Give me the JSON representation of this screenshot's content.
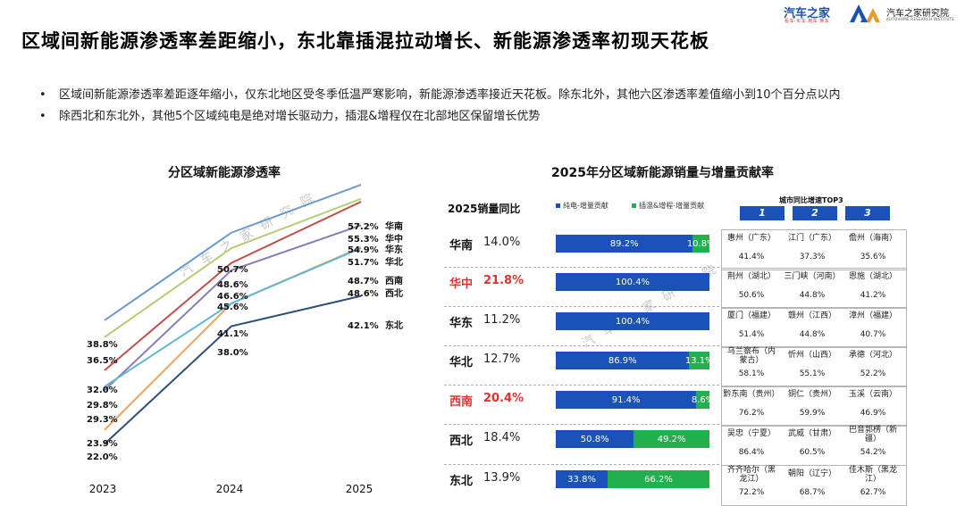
{
  "page": {
    "title": "区域间新能源渗透率差距缩小，东北靠插混拉动增长、新能源渗透率初现天花板",
    "logo_text": "汽车之家",
    "logo_sub": "看车·买车·用车·换车",
    "institute": "汽车之家研究院",
    "institute_en": "AUTOHOME RESEARCH INSTITUTE",
    "watermark": "汽车之家研究院",
    "bullets": [
      "区域间新能源渗透率差距逐年缩小，仅东北地区受冬季低温严寒影响，新能源渗透率接近天花板。除东北外，其他六区渗透率差值缩小到10个百分点以内",
      "除西北和东北外，其他5个区域纯电是绝对增长驱动力，插混&增程仅在北部地区保留增长优势"
    ]
  },
  "line_chart": {
    "title": "分区域新能源渗透率"
  },
  "bar_chart": {
    "title": "2025年分区域新能源销量与增量贡献率",
    "header_yoy": "2025销量同比",
    "legend_bev": "纯电-增量贡献",
    "legend_phev": "插混&增程-增量贡献",
    "city_title": "城市同比增速TOP3",
    "ranks": [
      "1",
      "2",
      "3"
    ]
  },
  "colors": {
    "bev": "#1a52b8",
    "phev": "#22b04e",
    "highlight": "#e0322f"
  },
  "chart_data": [
    {
      "type": "line",
      "title": "分区域新能源渗透率",
      "x": [
        "2023",
        "2024",
        "2025"
      ],
      "unit": "%",
      "ylim": [
        20,
        60
      ],
      "series": [
        {
          "name": "华南",
          "color": "#6b9bd1",
          "values": [
            38.8,
            50.7,
            57.2
          ]
        },
        {
          "name": "华中",
          "color": "#b4cf73",
          "values": [
            36.5,
            48.6,
            55.3
          ]
        },
        {
          "name": "华东",
          "color": "#c0504d",
          "values": [
            32.0,
            46.6,
            54.9
          ]
        },
        {
          "name": "华北",
          "color": "#8c7cb8",
          "values": [
            29.3,
            45.6,
            51.7
          ]
        },
        {
          "name": "西南",
          "color": "#f2a15a",
          "values": [
            23.9,
            41.1,
            48.7
          ]
        },
        {
          "name": "西北",
          "color": "#5fb7d4",
          "values": [
            29.8,
            41.1,
            48.6
          ]
        },
        {
          "name": "东北",
          "color": "#2f4f7a",
          "values": [
            22.0,
            38.0,
            42.1
          ]
        }
      ],
      "data_labels": {
        "2023": [
          "38.8%",
          "36.5%",
          "32.0%",
          "29.8%",
          "29.3%",
          "23.9%",
          "22.0%"
        ],
        "2024": [
          "50.7%",
          "48.6%",
          "46.6%",
          "45.6%",
          "41.1%",
          "38.0%"
        ],
        "2025": [
          {
            "value": "57.2%",
            "region": "华南"
          },
          {
            "value": "55.3%",
            "region": "华中"
          },
          {
            "value": "54.9%",
            "region": "华东"
          },
          {
            "value": "51.7%",
            "region": "华北"
          },
          {
            "value": "48.7%",
            "region": "西南"
          },
          {
            "value": "48.6%",
            "region": "西北"
          },
          {
            "value": "42.1%",
            "region": "东北"
          }
        ]
      }
    },
    {
      "type": "bar",
      "title": "2025年分区域新能源销量与增量贡献率",
      "stacked": true,
      "series_names": [
        "纯电-增量贡献",
        "插混&增程-增量贡献"
      ],
      "rows": [
        {
          "region": "华南",
          "yoy": "14.0%",
          "highlight": false,
          "bev": 89.2,
          "phev": 10.8,
          "bev_label": "89.2%",
          "phev_label": "10.8%",
          "cities": [
            {
              "name": "惠州（广东）",
              "value": "41.4%"
            },
            {
              "name": "江门（广东）",
              "value": "37.3%"
            },
            {
              "name": "儋州（海南）",
              "value": "35.6%"
            }
          ]
        },
        {
          "region": "华中",
          "yoy": "21.8%",
          "highlight": true,
          "bev": 100.4,
          "phev": 0,
          "bev_label": "100.4%",
          "phev_label": "",
          "cities": [
            {
              "name": "荆州（湖北）",
              "value": "50.6%"
            },
            {
              "name": "三门峡（河南）",
              "value": "44.8%"
            },
            {
              "name": "恩施（湖北）",
              "value": "41.2%"
            }
          ]
        },
        {
          "region": "华东",
          "yoy": "11.2%",
          "highlight": false,
          "bev": 100.4,
          "phev": 0,
          "bev_label": "100.4%",
          "phev_label": "",
          "cities": [
            {
              "name": "厦门（福建）",
              "value": "51.4%"
            },
            {
              "name": "赣州（江西）",
              "value": "44.8%"
            },
            {
              "name": "漳州（福建）",
              "value": "40.7%"
            }
          ]
        },
        {
          "region": "华北",
          "yoy": "12.7%",
          "highlight": false,
          "bev": 86.9,
          "phev": 13.1,
          "bev_label": "86.9%",
          "phev_label": "13.1%",
          "cities": [
            {
              "name": "乌兰察布（内蒙古）",
              "value": "58.1%"
            },
            {
              "name": "忻州（山西）",
              "value": "55.1%"
            },
            {
              "name": "承德（河北）",
              "value": "52.2%"
            }
          ]
        },
        {
          "region": "西南",
          "yoy": "20.4%",
          "highlight": true,
          "bev": 91.4,
          "phev": 8.6,
          "bev_label": "91.4%",
          "phev_label": "8.6%",
          "cities": [
            {
              "name": "黔东南（贵州）",
              "value": "76.2%"
            },
            {
              "name": "铜仁（贵州）",
              "value": "59.9%"
            },
            {
              "name": "玉溪（云南）",
              "value": "46.9%"
            }
          ]
        },
        {
          "region": "西北",
          "yoy": "18.4%",
          "highlight": false,
          "bev": 50.8,
          "phev": 49.2,
          "bev_label": "50.8%",
          "phev_label": "49.2%",
          "cities": [
            {
              "name": "吴忠（宁夏）",
              "value": "86.4%"
            },
            {
              "name": "武威（甘肃）",
              "value": "60.5%"
            },
            {
              "name": "巴音郭楞（新疆）",
              "value": "54.2%"
            }
          ]
        },
        {
          "region": "东北",
          "yoy": "13.9%",
          "highlight": false,
          "bev": 33.8,
          "phev": 66.2,
          "bev_label": "33.8%",
          "phev_label": "66.2%",
          "cities": [
            {
              "name": "齐齐哈尔（黑龙江）",
              "value": "72.2%"
            },
            {
              "name": "朝阳（辽宁）",
              "value": "68.7%"
            },
            {
              "name": "佳木斯（黑龙江）",
              "value": "62.7%"
            }
          ]
        }
      ]
    }
  ]
}
